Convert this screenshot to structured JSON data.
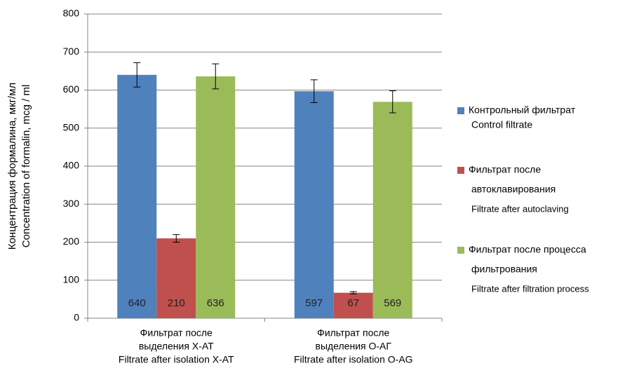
{
  "chart_data": {
    "type": "bar",
    "y_label": [
      "Концентрация формалина, мкг/мл",
      "Concentration of formalin, mcg / ml"
    ],
    "categories": [
      [
        "Фильтрат после",
        "выделения Х-АТ",
        "Filtrate after isolation X-AT"
      ],
      [
        "Фильтрат после",
        "выделения О-АГ",
        "Filtrate after isolation O-AG"
      ]
    ],
    "series": [
      {
        "name": [
          "Контрольный фильтрат",
          "Control filtrate"
        ],
        "color": "#4f81bd",
        "values": [
          640,
          597
        ],
        "errors": [
          32,
          30
        ]
      },
      {
        "name": [
          "Фильтрат после",
          "автоклавирования",
          "Filtrate after autoclaving"
        ],
        "color": "#c0504d",
        "values": [
          210,
          67
        ],
        "errors": [
          10,
          3
        ]
      },
      {
        "name": [
          "Фильтрат после процесса",
          "фильтрования",
          "Filtrate after filtration process"
        ],
        "color": "#9bbb59",
        "values": [
          636,
          569
        ],
        "errors": [
          33,
          29
        ]
      }
    ],
    "ylim": [
      0,
      800
    ],
    "yticks": [
      0,
      100,
      200,
      300,
      400,
      500,
      600,
      700,
      800
    ],
    "grid": true,
    "legend": "right"
  }
}
